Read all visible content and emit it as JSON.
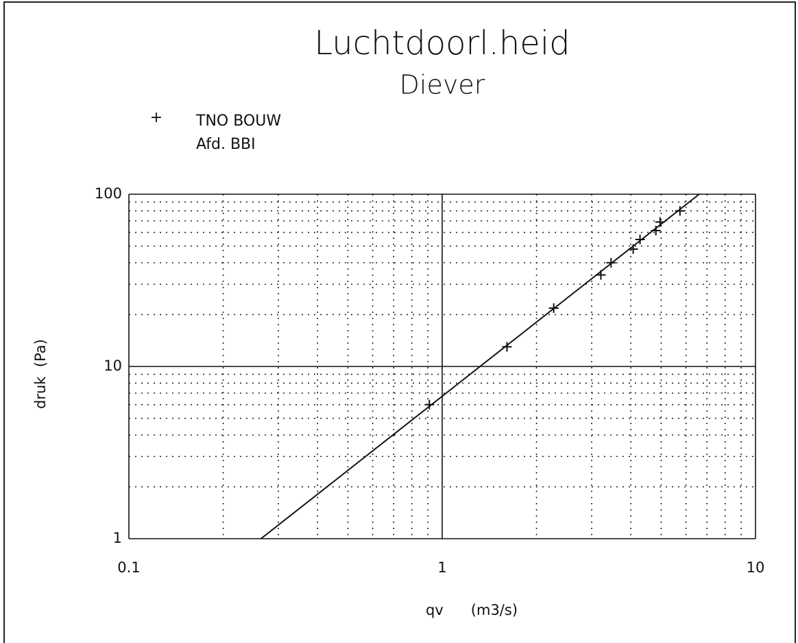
{
  "chart_data": {
    "type": "scatter",
    "title": "Luchtdoorl.heid",
    "subtitle": "Diever",
    "legend": [
      "TNO BOUW",
      "Afd. BBI"
    ],
    "marker": "+",
    "x_label": "qv      (m3/s)",
    "y_label": "druk  (Pa)",
    "log_x": true,
    "log_y": true,
    "grid": true,
    "xlim": [
      0.1,
      10
    ],
    "ylim": [
      1,
      100
    ],
    "xticks": [
      0.1,
      1,
      10
    ],
    "yticks": [
      1,
      10,
      100
    ],
    "x_minor_ticks": [
      0.2,
      0.3,
      0.4,
      0.5,
      0.6,
      0.7,
      0.8,
      0.9,
      2,
      3,
      4,
      5,
      6,
      7,
      8,
      9
    ],
    "y_minor_ticks": [
      2,
      3,
      4,
      5,
      6,
      7,
      8,
      9,
      20,
      30,
      40,
      50,
      60,
      70,
      80,
      90
    ],
    "x": [
      0.91,
      1.61,
      2.27,
      3.21,
      3.46,
      4.07,
      4.28,
      4.81,
      4.96,
      5.74
    ],
    "values": [
      6,
      13,
      21.8,
      34,
      40,
      48,
      54.6,
      61.5,
      69,
      80
    ],
    "color": "#111",
    "fit_line": {
      "x": [
        0.264,
        6.61
      ],
      "values": [
        1,
        100
      ]
    }
  }
}
